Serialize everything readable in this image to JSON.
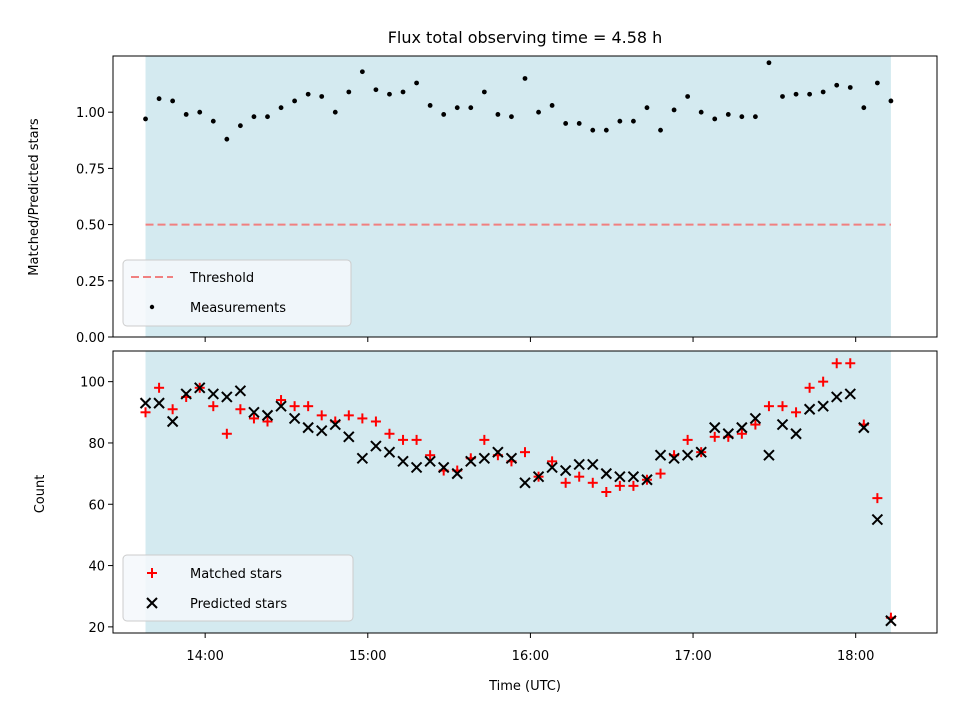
{
  "colors": {
    "observing_span": "#d4eaf0",
    "threshold": "#f08080",
    "measurements": "#000000",
    "matched": "#ff0000",
    "predicted": "#000000",
    "legend_bg": "#f5f8fc"
  },
  "chart_data": [
    {
      "type": "scatter",
      "title": "Flux total observing time = 4.58 h",
      "ylabel": "Matched/Predicted stars",
      "ylim": [
        0,
        1.25
      ],
      "yticks": [
        0.0,
        0.25,
        0.5,
        0.75,
        1.0
      ],
      "ytick_labels": [
        "0.00",
        "0.25",
        "0.50",
        "0.75",
        "1.00"
      ],
      "xlim": [
        "13:26",
        "18:30"
      ],
      "span": [
        "13:38",
        "18:13"
      ],
      "threshold": 0.5,
      "legend": [
        "Threshold",
        "Measurements"
      ],
      "legend_loc": "lower left",
      "series": [
        {
          "name": "Measurements",
          "points": [
            [
              "13:38",
              0.97
            ],
            [
              "13:43",
              1.06
            ],
            [
              "13:48",
              1.05
            ],
            [
              "13:53",
              0.99
            ],
            [
              "13:58",
              1.0
            ],
            [
              "14:03",
              0.96
            ],
            [
              "14:08",
              0.88
            ],
            [
              "14:13",
              0.94
            ],
            [
              "14:18",
              0.98
            ],
            [
              "14:23",
              0.98
            ],
            [
              "14:28",
              1.02
            ],
            [
              "14:33",
              1.05
            ],
            [
              "14:38",
              1.08
            ],
            [
              "14:43",
              1.07
            ],
            [
              "14:48",
              1.0
            ],
            [
              "14:53",
              1.09
            ],
            [
              "14:58",
              1.18
            ],
            [
              "15:03",
              1.1
            ],
            [
              "15:08",
              1.08
            ],
            [
              "15:13",
              1.09
            ],
            [
              "15:18",
              1.13
            ],
            [
              "15:23",
              1.03
            ],
            [
              "15:28",
              0.99
            ],
            [
              "15:33",
              1.02
            ],
            [
              "15:38",
              1.02
            ],
            [
              "15:43",
              1.09
            ],
            [
              "15:48",
              0.99
            ],
            [
              "15:53",
              0.98
            ],
            [
              "15:58",
              1.15
            ],
            [
              "16:03",
              1.0
            ],
            [
              "16:08",
              1.03
            ],
            [
              "16:13",
              0.95
            ],
            [
              "16:18",
              0.95
            ],
            [
              "16:23",
              0.92
            ],
            [
              "16:28",
              0.92
            ],
            [
              "16:33",
              0.96
            ],
            [
              "16:38",
              0.96
            ],
            [
              "16:43",
              1.02
            ],
            [
              "16:48",
              0.92
            ],
            [
              "16:53",
              1.01
            ],
            [
              "16:58",
              1.07
            ],
            [
              "17:03",
              1.0
            ],
            [
              "17:08",
              0.97
            ],
            [
              "17:13",
              0.99
            ],
            [
              "17:18",
              0.98
            ],
            [
              "17:23",
              0.98
            ],
            [
              "17:28",
              1.22
            ],
            [
              "17:33",
              1.07
            ],
            [
              "17:38",
              1.08
            ],
            [
              "17:43",
              1.08
            ],
            [
              "17:48",
              1.09
            ],
            [
              "17:53",
              1.12
            ],
            [
              "17:58",
              1.11
            ],
            [
              "18:03",
              1.02
            ],
            [
              "18:08",
              1.13
            ],
            [
              "18:13",
              1.05
            ]
          ]
        }
      ]
    },
    {
      "type": "scatter",
      "xlabel": "Time (UTC)",
      "ylabel": "Count",
      "ylim": [
        18,
        110
      ],
      "yticks": [
        20,
        40,
        60,
        80,
        100
      ],
      "xlim": [
        "13:26",
        "18:30"
      ],
      "xticks": [
        "14:00",
        "15:00",
        "16:00",
        "17:00",
        "18:00"
      ],
      "span": [
        "13:38",
        "18:13"
      ],
      "legend": [
        "Matched stars",
        "Predicted stars"
      ],
      "legend_loc": "lower left",
      "series": [
        {
          "name": "Matched stars",
          "points": [
            [
              "13:38",
              90
            ],
            [
              "13:43",
              98
            ],
            [
              "13:48",
              91
            ],
            [
              "13:53",
              95
            ],
            [
              "13:58",
              98
            ],
            [
              "14:03",
              92
            ],
            [
              "14:08",
              83
            ],
            [
              "14:13",
              91
            ],
            [
              "14:18",
              88
            ],
            [
              "14:23",
              87
            ],
            [
              "14:28",
              94
            ],
            [
              "14:33",
              92
            ],
            [
              "14:38",
              92
            ],
            [
              "14:43",
              89
            ],
            [
              "14:48",
              87
            ],
            [
              "14:53",
              89
            ],
            [
              "14:58",
              88
            ],
            [
              "15:03",
              87
            ],
            [
              "15:08",
              83
            ],
            [
              "15:13",
              81
            ],
            [
              "15:18",
              81
            ],
            [
              "15:23",
              76
            ],
            [
              "15:28",
              71
            ],
            [
              "15:33",
              71
            ],
            [
              "15:38",
              75
            ],
            [
              "15:43",
              81
            ],
            [
              "15:48",
              76
            ],
            [
              "15:53",
              74
            ],
            [
              "15:58",
              77
            ],
            [
              "16:03",
              69
            ],
            [
              "16:08",
              74
            ],
            [
              "16:13",
              67
            ],
            [
              "16:18",
              69
            ],
            [
              "16:23",
              67
            ],
            [
              "16:28",
              64
            ],
            [
              "16:33",
              66
            ],
            [
              "16:38",
              66
            ],
            [
              "16:43",
              68
            ],
            [
              "16:48",
              70
            ],
            [
              "16:53",
              76
            ],
            [
              "16:58",
              81
            ],
            [
              "17:03",
              77
            ],
            [
              "17:08",
              82
            ],
            [
              "17:13",
              82
            ],
            [
              "17:18",
              83
            ],
            [
              "17:23",
              86
            ],
            [
              "17:28",
              92
            ],
            [
              "17:33",
              92
            ],
            [
              "17:38",
              90
            ],
            [
              "17:43",
              98
            ],
            [
              "17:48",
              100
            ],
            [
              "17:53",
              106
            ],
            [
              "17:58",
              106
            ],
            [
              "18:03",
              86
            ],
            [
              "18:08",
              62
            ],
            [
              "18:13",
              23
            ]
          ]
        },
        {
          "name": "Predicted stars",
          "points": [
            [
              "13:38",
              93
            ],
            [
              "13:43",
              93
            ],
            [
              "13:48",
              87
            ],
            [
              "13:53",
              96
            ],
            [
              "13:58",
              98
            ],
            [
              "14:03",
              96
            ],
            [
              "14:08",
              95
            ],
            [
              "14:13",
              97
            ],
            [
              "14:18",
              90
            ],
            [
              "14:23",
              89
            ],
            [
              "14:28",
              92
            ],
            [
              "14:33",
              88
            ],
            [
              "14:38",
              85
            ],
            [
              "14:43",
              84
            ],
            [
              "14:48",
              86
            ],
            [
              "14:53",
              82
            ],
            [
              "14:58",
              75
            ],
            [
              "15:03",
              79
            ],
            [
              "15:08",
              77
            ],
            [
              "15:13",
              74
            ],
            [
              "15:18",
              72
            ],
            [
              "15:23",
              74
            ],
            [
              "15:28",
              72
            ],
            [
              "15:33",
              70
            ],
            [
              "15:38",
              74
            ],
            [
              "15:43",
              75
            ],
            [
              "15:48",
              77
            ],
            [
              "15:53",
              75
            ],
            [
              "15:58",
              67
            ],
            [
              "16:03",
              69
            ],
            [
              "16:08",
              72
            ],
            [
              "16:13",
              71
            ],
            [
              "16:18",
              73
            ],
            [
              "16:23",
              73
            ],
            [
              "16:28",
              70
            ],
            [
              "16:33",
              69
            ],
            [
              "16:38",
              69
            ],
            [
              "16:43",
              68
            ],
            [
              "16:48",
              76
            ],
            [
              "16:53",
              75
            ],
            [
              "16:58",
              76
            ],
            [
              "17:03",
              77
            ],
            [
              "17:08",
              85
            ],
            [
              "17:13",
              83
            ],
            [
              "17:18",
              85
            ],
            [
              "17:23",
              88
            ],
            [
              "17:28",
              76
            ],
            [
              "17:33",
              86
            ],
            [
              "17:38",
              83
            ],
            [
              "17:43",
              91
            ],
            [
              "17:48",
              92
            ],
            [
              "17:53",
              95
            ],
            [
              "17:58",
              96
            ],
            [
              "18:03",
              85
            ],
            [
              "18:08",
              55
            ],
            [
              "18:13",
              22
            ]
          ]
        }
      ]
    }
  ]
}
